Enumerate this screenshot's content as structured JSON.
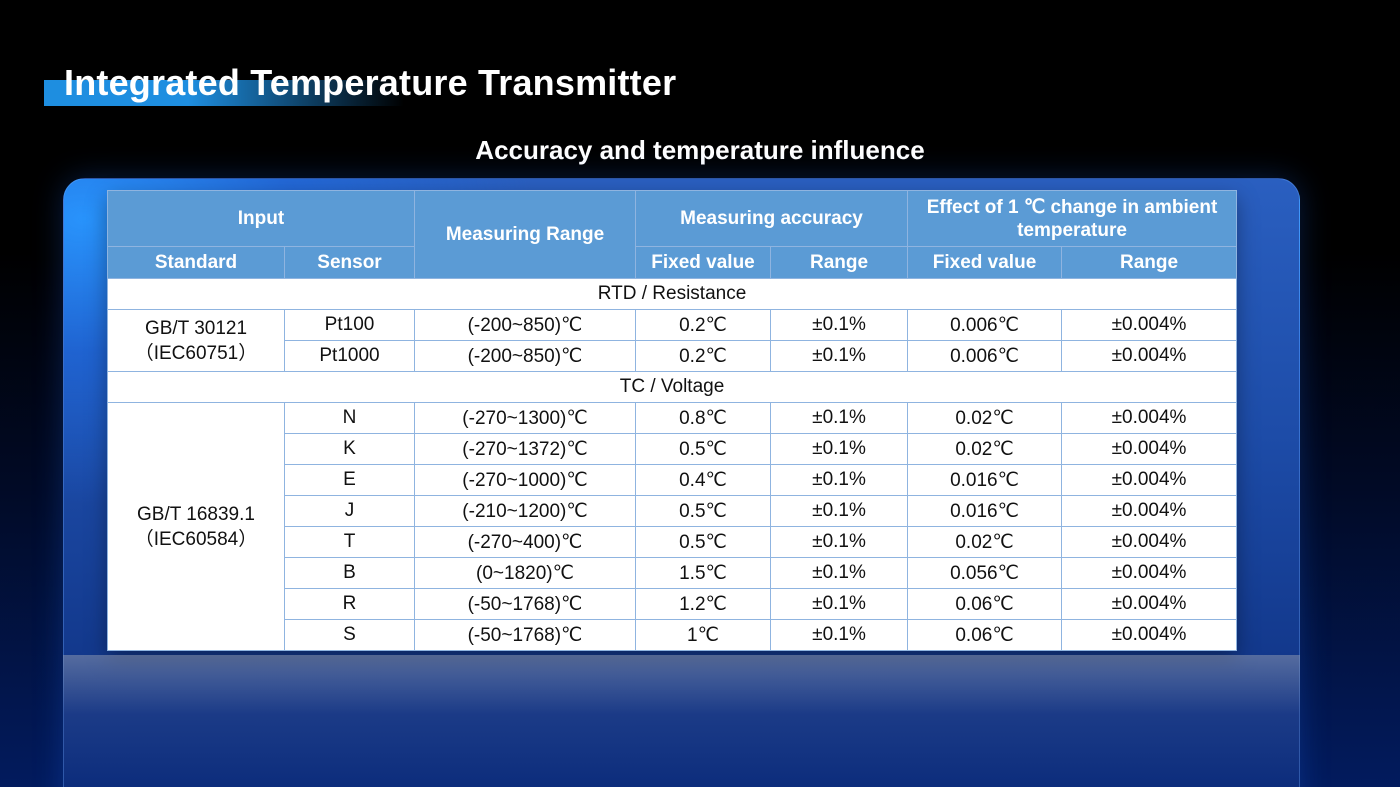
{
  "page": {
    "title": "Integrated Temperature Transmitter",
    "subtitle": "Accuracy and temperature influence"
  },
  "table": {
    "headers": {
      "input": "Input",
      "measuring_range": "Measuring Range",
      "measuring_accuracy": "Measuring accuracy",
      "effect": "Effect of 1 ℃ change in ambient temperature",
      "standard": "Standard",
      "sensor": "Sensor",
      "fixed_value": "Fixed value",
      "range": "Range",
      "fixed_value_2": "Fixed value",
      "range_2": "Range"
    },
    "sections": [
      {
        "label": "RTD / Resistance",
        "standard_line1": "GB/T 30121",
        "standard_line2": "（IEC60751）",
        "rows": [
          {
            "sensor": "Pt100",
            "measuring_range": "(-200~850)℃",
            "acc_fixed": "0.2℃",
            "acc_range": "±0.1%",
            "eff_fixed": "0.006℃",
            "eff_range": "±0.004%"
          },
          {
            "sensor": "Pt1000",
            "measuring_range": "(-200~850)℃",
            "acc_fixed": "0.2℃",
            "acc_range": "±0.1%",
            "eff_fixed": "0.006℃",
            "eff_range": "±0.004%"
          }
        ]
      },
      {
        "label": "TC / Voltage",
        "standard_line1": "GB/T 16839.1",
        "standard_line2": "（IEC60584）",
        "rows": [
          {
            "sensor": "N",
            "measuring_range": "(-270~1300)℃",
            "acc_fixed": "0.8℃",
            "acc_range": "±0.1%",
            "eff_fixed": "0.02℃",
            "eff_range": "±0.004%"
          },
          {
            "sensor": "K",
            "measuring_range": "(-270~1372)℃",
            "acc_fixed": "0.5℃",
            "acc_range": "±0.1%",
            "eff_fixed": "0.02℃",
            "eff_range": "±0.004%"
          },
          {
            "sensor": "E",
            "measuring_range": "(-270~1000)℃",
            "acc_fixed": "0.4℃",
            "acc_range": "±0.1%",
            "eff_fixed": "0.016℃",
            "eff_range": "±0.004%"
          },
          {
            "sensor": "J",
            "measuring_range": "(-210~1200)℃",
            "acc_fixed": "0.5℃",
            "acc_range": "±0.1%",
            "eff_fixed": "0.016℃",
            "eff_range": "±0.004%"
          },
          {
            "sensor": "T",
            "measuring_range": "(-270~400)℃",
            "acc_fixed": "0.5℃",
            "acc_range": "±0.1%",
            "eff_fixed": "0.02℃",
            "eff_range": "±0.004%"
          },
          {
            "sensor": "B",
            "measuring_range": "(0~1820)℃",
            "acc_fixed": "1.5℃",
            "acc_range": "±0.1%",
            "eff_fixed": "0.056℃",
            "eff_range": "±0.004%"
          },
          {
            "sensor": "R",
            "measuring_range": "(-50~1768)℃",
            "acc_fixed": "1.2℃",
            "acc_range": "±0.1%",
            "eff_fixed": "0.06℃",
            "eff_range": "±0.004%"
          },
          {
            "sensor": "S",
            "measuring_range": "(-50~1768)℃",
            "acc_fixed": "1℃",
            "acc_range": "±0.1%",
            "eff_fixed": "0.06℃",
            "eff_range": "±0.004%"
          }
        ]
      }
    ]
  },
  "colors": {
    "header_bg": "#5b9bd5",
    "accent_blue": "#1e8ee0",
    "panel_blue": "#2a5fc0"
  }
}
